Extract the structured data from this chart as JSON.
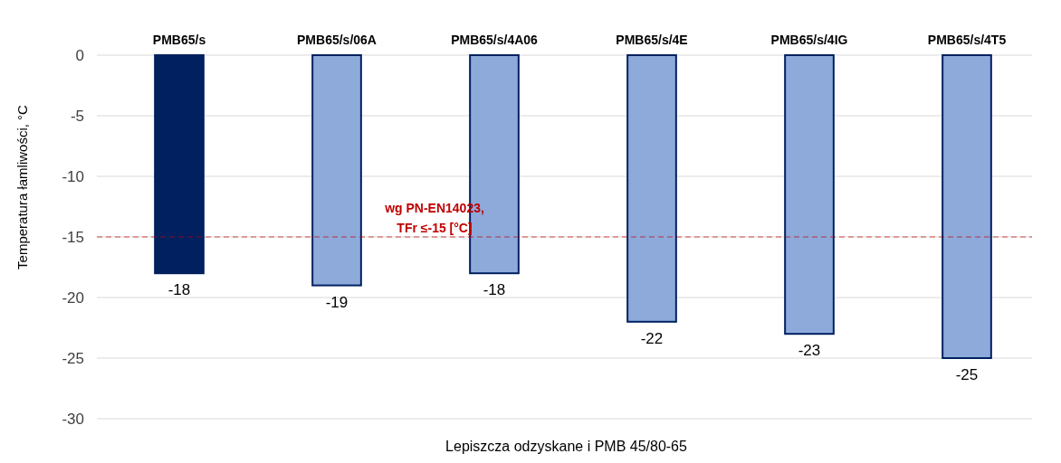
{
  "chart_data": {
    "type": "bar",
    "categories": [
      "PMB65/s",
      "PMB65/s/06A",
      "PMB65/s/4A06",
      "PMB65/s/4E",
      "PMB65/s/4IG",
      "PMB65/s/4T5"
    ],
    "values": [
      -18,
      -19,
      -18,
      -22,
      -23,
      -25
    ],
    "colors": [
      "#002060",
      "#8eaadb",
      "#8eaadb",
      "#8eaadb",
      "#8eaadb",
      "#8eaadb"
    ],
    "xlabel": "Lepiszcza odzyskane i PMB 45/80-65",
    "ylabel": "Temperatura łamliwości, °C",
    "ylim": [
      -30,
      0
    ],
    "yticks": [
      0,
      -5,
      -10,
      -15,
      -20,
      -25,
      -30
    ],
    "grid": "y",
    "data_labels": true,
    "ref_lines": [
      {
        "axis": "y",
        "value": -15,
        "label": "wg PN-EN14023,\nTFr ≤-15 [°C]",
        "color": "#c00000",
        "line_style": "dashed"
      }
    ]
  }
}
